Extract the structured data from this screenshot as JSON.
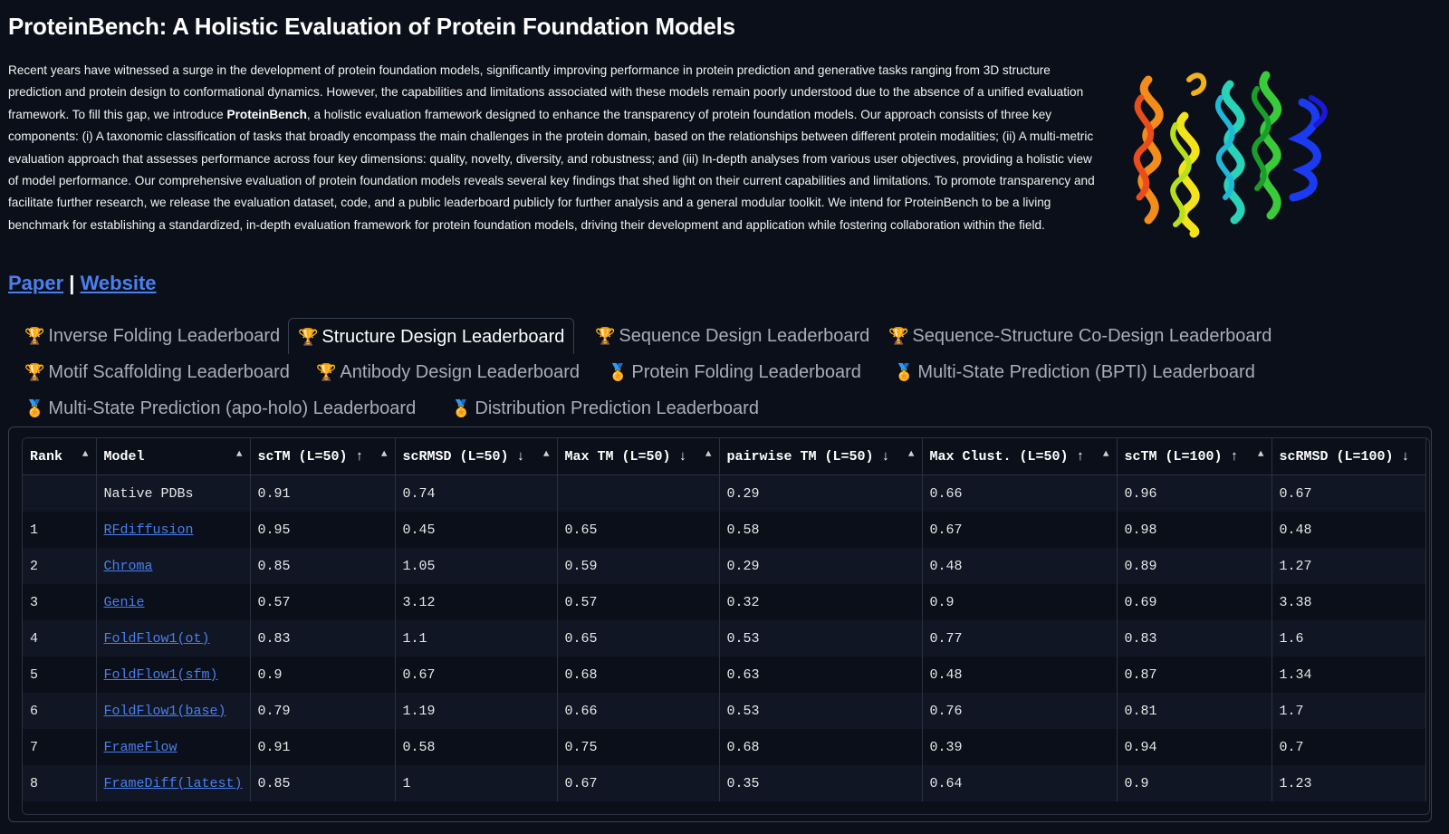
{
  "title": "ProteinBench: A Holistic Evaluation of Protein Foundation Models",
  "abstract": {
    "part1": "Recent years have witnessed a surge in the development of protein foundation models, significantly improving performance in protein prediction and generative tasks ranging from 3D structure prediction and protein design to conformational dynamics. However, the capabilities and limitations associated with these models remain poorly understood due to the absence of a unified evaluation framework. To fill this gap, we introduce ",
    "bold": "ProteinBench",
    "part2": ", a holistic evaluation framework designed to enhance the transparency of protein foundation models. Our approach consists of three key components: (i) A taxonomic classification of tasks that broadly encompass the main challenges in the protein domain, based on the relationships between different protein modalities; (ii) A multi-metric evaluation approach that assesses performance across four key dimensions: quality, novelty, diversity, and robustness; and (iii) In-depth analyses from various user objectives, providing a holistic view of model performance. Our comprehensive evaluation of protein foundation models reveals several key findings that shed light on their current capabilities and limitations. To promote transparency and facilitate further research, we release the evaluation dataset, code, and a public leaderboard publicly for further analysis and a general modular toolkit. We intend for ProteinBench to be a living benchmark for establishing a standardized, in-depth evaluation framework for protein foundation models, driving their development and application while fostering collaboration within the field."
  },
  "links": {
    "paper": "Paper",
    "separator": "|",
    "website": "Website"
  },
  "tabs": [
    {
      "label": "Inverse Folding Leaderboard",
      "icon": "🏆"
    },
    {
      "label": "Structure Design Leaderboard",
      "icon": "🏆"
    },
    {
      "label": "Sequence Design Leaderboard",
      "icon": "🏆"
    },
    {
      "label": "Sequence-Structure Co-Design Leaderboard",
      "icon": "🏆"
    },
    {
      "label": "Motif Scaffolding Leaderboard",
      "icon": "🏆"
    },
    {
      "label": "Antibody Design Leaderboard",
      "icon": "🏆"
    },
    {
      "label": "Protein Folding Leaderboard",
      "icon": "🏅"
    },
    {
      "label": "Multi-State Prediction (BPTI) Leaderboard",
      "icon": "🏅"
    },
    {
      "label": "Multi-State Prediction (apo-holo) Leaderboard",
      "icon": "🏅"
    },
    {
      "label": "Distribution Prediction Leaderboard",
      "icon": "🏅"
    }
  ],
  "selected_tab": "Structure Design Leaderboard",
  "table": {
    "columns": [
      "Rank",
      "Model",
      "scTM (L=50) ↑",
      "scRMSD (L=50) ↓",
      "Max TM (L=50) ↓",
      "pairwise TM (L=50) ↓",
      "Max Clust. (L=50) ↑",
      "scTM (L=100) ↑",
      "scRMSD (L=100) ↓"
    ],
    "sort_icon": "▲",
    "rows": [
      {
        "rank": "",
        "model": "Native PDBs",
        "link": false,
        "vals": [
          "0.91",
          "0.74",
          "",
          "0.29",
          "0.66",
          "0.96",
          "0.67"
        ]
      },
      {
        "rank": "1",
        "model": "RFdiffusion",
        "link": true,
        "vals": [
          "0.95",
          "0.45",
          "0.65",
          "0.58",
          "0.67",
          "0.98",
          "0.48"
        ]
      },
      {
        "rank": "2",
        "model": "Chroma",
        "link": true,
        "vals": [
          "0.85",
          "1.05",
          "0.59",
          "0.29",
          "0.48",
          "0.89",
          "1.27"
        ]
      },
      {
        "rank": "3",
        "model": "Genie",
        "link": true,
        "vals": [
          "0.57",
          "3.12",
          "0.57",
          "0.32",
          "0.9",
          "0.69",
          "3.38"
        ]
      },
      {
        "rank": "4",
        "model": "FoldFlow1(ot)",
        "link": true,
        "vals": [
          "0.83",
          "1.1",
          "0.65",
          "0.53",
          "0.77",
          "0.83",
          "1.6"
        ]
      },
      {
        "rank": "5",
        "model": "FoldFlow1(sfm)",
        "link": true,
        "vals": [
          "0.9",
          "0.67",
          "0.68",
          "0.63",
          "0.48",
          "0.87",
          "1.34"
        ]
      },
      {
        "rank": "6",
        "model": "FoldFlow1(base)",
        "link": true,
        "vals": [
          "0.79",
          "1.19",
          "0.66",
          "0.53",
          "0.76",
          "0.81",
          "1.7"
        ]
      },
      {
        "rank": "7",
        "model": "FrameFlow",
        "link": true,
        "vals": [
          "0.91",
          "0.58",
          "0.75",
          "0.68",
          "0.39",
          "0.94",
          "0.7"
        ]
      },
      {
        "rank": "8",
        "model": "FrameDiff(latest)",
        "link": true,
        "vals": [
          "0.85",
          "1",
          "0.67",
          "0.35",
          "0.64",
          "0.9",
          "1.23"
        ]
      }
    ]
  }
}
